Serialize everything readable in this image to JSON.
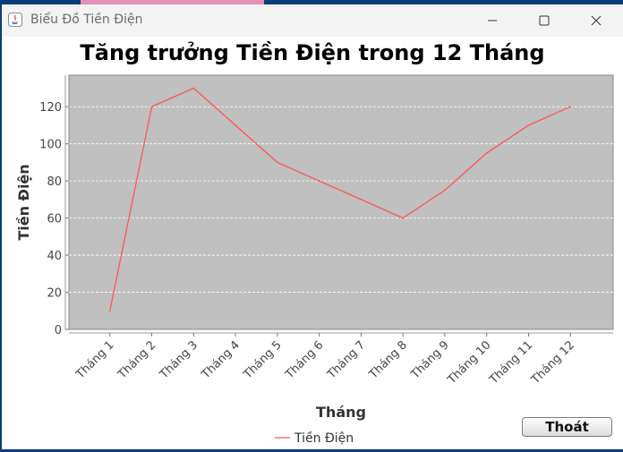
{
  "window": {
    "title": "Biểu Đồ Tiền Điện"
  },
  "colors": {
    "plot_bg": "#c0c0c0",
    "series": "#ff5555",
    "grid": "#ffffff"
  },
  "buttons": {
    "exit_label": "Thoát"
  },
  "chart_data": {
    "type": "line",
    "title": "Tăng trưởng Tiền Điện trong 12 Tháng",
    "xlabel": "Tháng",
    "ylabel": "Tiền Điện",
    "categories": [
      "Tháng 1",
      "Tháng 2",
      "Tháng 3",
      "Tháng 4",
      "Tháng 5",
      "Tháng 6",
      "Tháng 7",
      "Tháng 8",
      "Tháng 9",
      "Tháng 10",
      "Tháng 11",
      "Tháng 12"
    ],
    "series": [
      {
        "name": "Tiền Điện",
        "values": [
          10,
          120,
          130,
          110,
          90,
          80,
          70,
          60,
          75,
          95,
          110,
          120
        ]
      }
    ],
    "ylim": [
      0,
      137
    ],
    "yticks": [
      0,
      20,
      40,
      60,
      80,
      100,
      120
    ],
    "grid": true,
    "legend": "bottom-center"
  }
}
